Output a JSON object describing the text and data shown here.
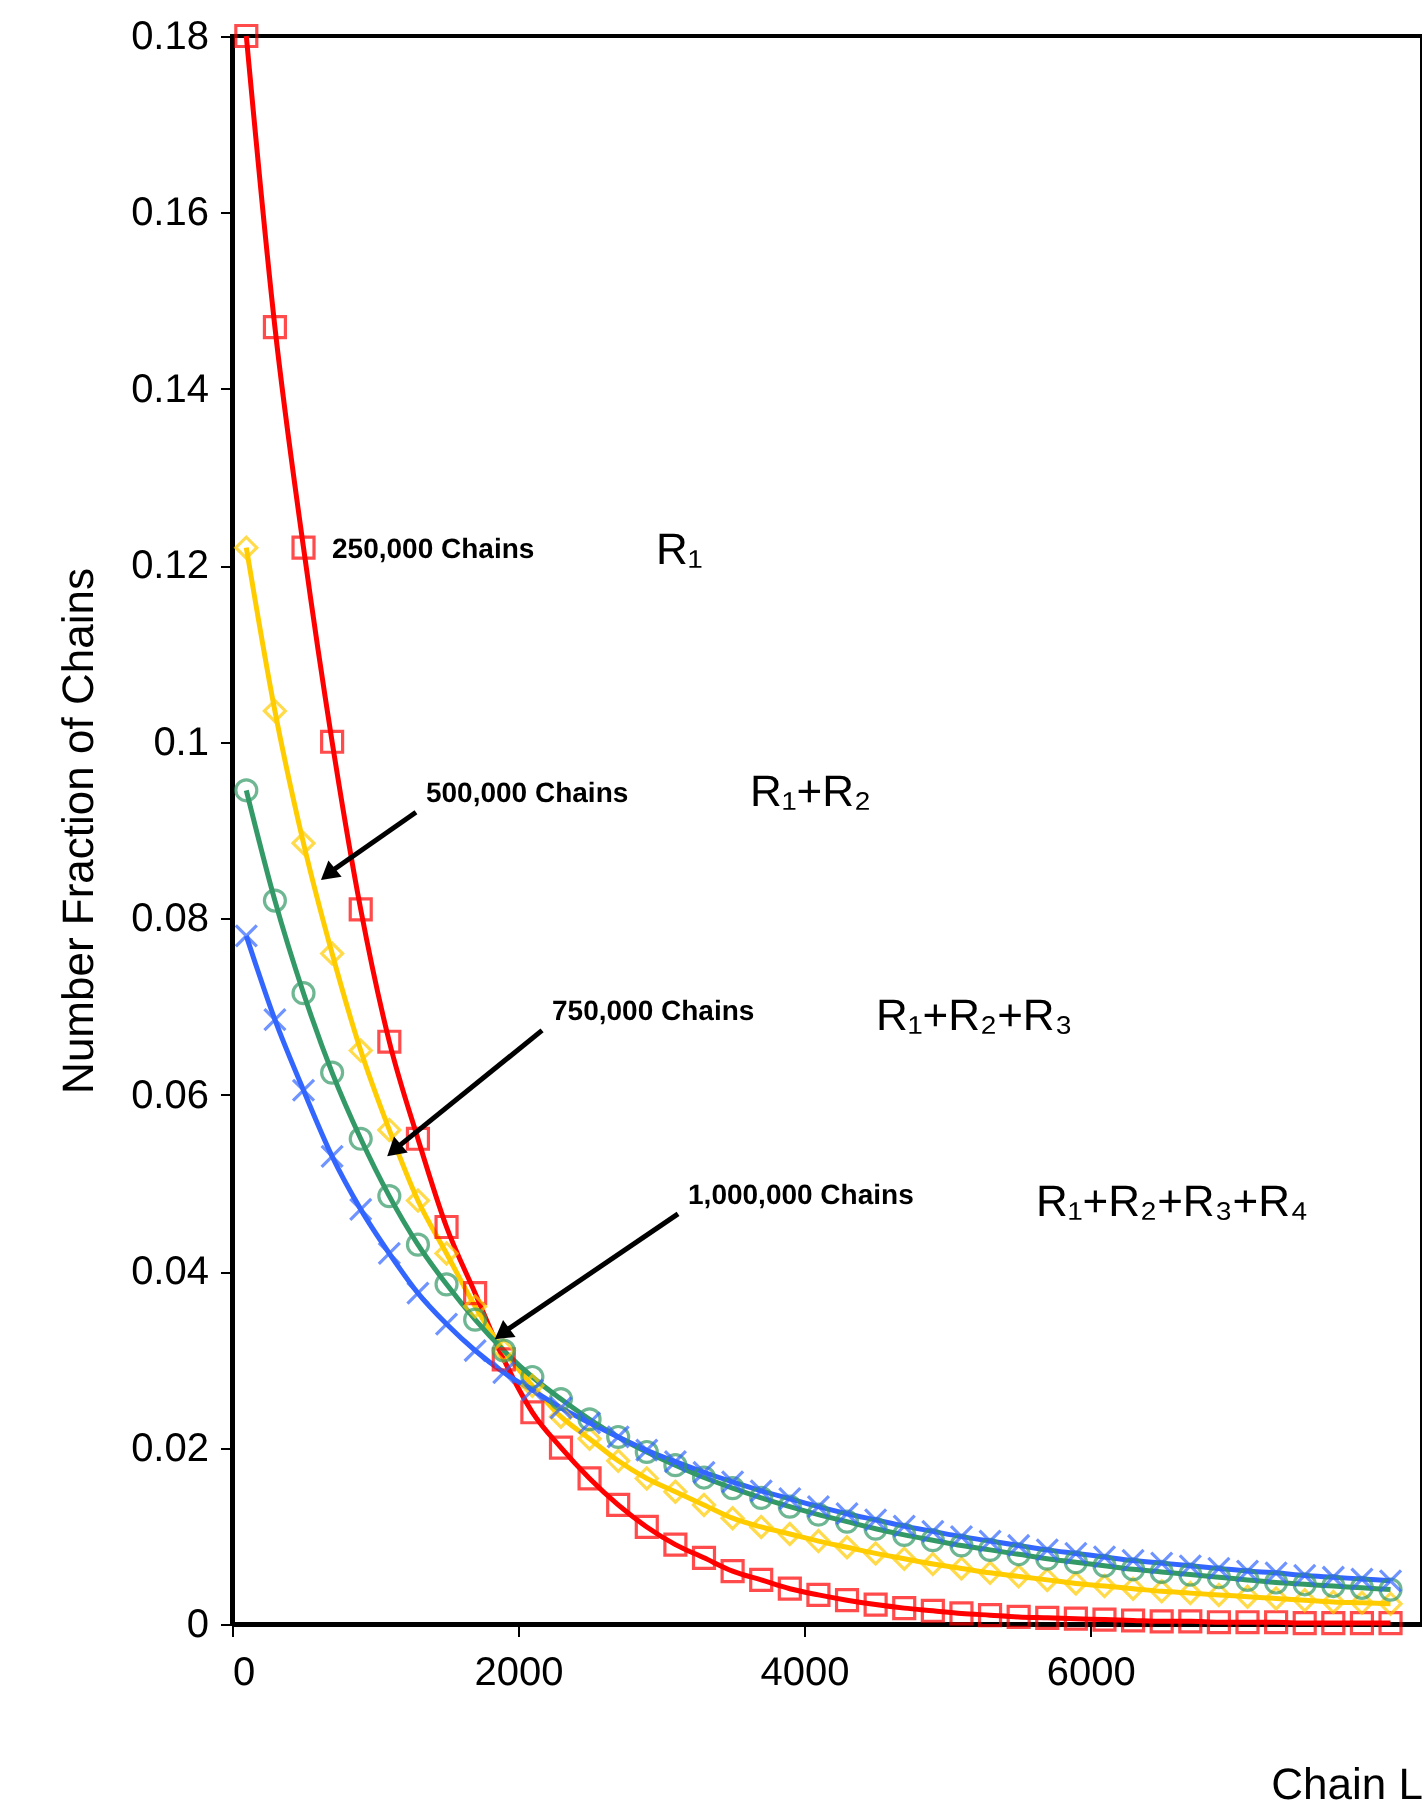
{
  "chart_data": {
    "type": "line",
    "xlabel": "Chain L",
    "ylabel": "Number Fraction of Chains",
    "x": [
      100,
      300,
      500,
      700,
      900,
      1100,
      1300,
      1500,
      1700,
      1900,
      2100,
      2300,
      2500,
      2700,
      2900,
      3100,
      3300,
      3500,
      3700,
      3900,
      4100,
      4300,
      4500,
      4700,
      4900,
      5100,
      5300,
      5500,
      5700,
      5900,
      6100,
      6300,
      6500,
      6700,
      6900,
      7100,
      7300,
      7500,
      7700,
      7900,
      8100
    ],
    "series": [
      {
        "color": "#ff0000",
        "marker": "square",
        "values": [
          0.18,
          0.147,
          0.122,
          0.1,
          0.081,
          0.066,
          0.055,
          0.045,
          0.0375,
          0.03,
          0.024,
          0.02,
          0.0165,
          0.0135,
          0.011,
          0.009,
          0.0075,
          0.006,
          0.005,
          0.004,
          0.0033,
          0.0027,
          0.0022,
          0.0018,
          0.0015,
          0.0012,
          0.001,
          0.0008,
          0.0007,
          0.0006,
          0.0005,
          0.0004,
          0.0003,
          0.0003,
          0.0002,
          0.0002,
          0.0002,
          0.0001,
          0.0001,
          0.0001,
          0.0001
        ]
      },
      {
        "color": "#ffcc00",
        "marker": "diamond",
        "values": [
          0.122,
          0.1035,
          0.0885,
          0.076,
          0.065,
          0.056,
          0.048,
          0.042,
          0.036,
          0.031,
          0.027,
          0.0235,
          0.021,
          0.0185,
          0.0165,
          0.015,
          0.0135,
          0.012,
          0.011,
          0.0102,
          0.0094,
          0.0087,
          0.008,
          0.0074,
          0.0068,
          0.0063,
          0.0058,
          0.0054,
          0.005,
          0.0046,
          0.0043,
          0.004,
          0.0037,
          0.0035,
          0.0033,
          0.0031,
          0.0029,
          0.0027,
          0.0025,
          0.0024,
          0.0023
        ]
      },
      {
        "color": "#339966",
        "marker": "circle",
        "values": [
          0.0945,
          0.082,
          0.0715,
          0.0625,
          0.055,
          0.0485,
          0.043,
          0.0385,
          0.0345,
          0.031,
          0.028,
          0.0255,
          0.0232,
          0.0212,
          0.0195,
          0.018,
          0.0166,
          0.0154,
          0.0143,
          0.0133,
          0.0124,
          0.0116,
          0.0108,
          0.0101,
          0.0095,
          0.0089,
          0.0084,
          0.0079,
          0.0074,
          0.007,
          0.0066,
          0.0062,
          0.0059,
          0.0056,
          0.0053,
          0.005,
          0.0047,
          0.0045,
          0.0043,
          0.0041,
          0.0039
        ]
      },
      {
        "color": "#3366ff",
        "marker": "cross",
        "values": [
          0.078,
          0.0685,
          0.0605,
          0.053,
          0.047,
          0.042,
          0.0375,
          0.034,
          0.031,
          0.0285,
          0.0265,
          0.0245,
          0.0228,
          0.0212,
          0.0197,
          0.0184,
          0.0172,
          0.0161,
          0.0151,
          0.0142,
          0.0133,
          0.0125,
          0.0118,
          0.0111,
          0.0105,
          0.0099,
          0.0094,
          0.0089,
          0.0084,
          0.008,
          0.0076,
          0.0072,
          0.0069,
          0.0066,
          0.0063,
          0.006,
          0.0058,
          0.0055,
          0.0053,
          0.0051,
          0.0049
        ]
      }
    ],
    "annotations": [
      "250,000 Chains",
      "R₁",
      "R₁+R₂",
      "R₁+R₂+R₃",
      "R₁+R₂+R₃+R₄",
      {
        "text": "500,000 Chains",
        "x": 615,
        "y": 0.0843
      },
      {
        "text": "750,000 Chains",
        "x": 1077,
        "y": 0.053
      },
      {
        "text": "1,000,000 Chains",
        "x": 1832,
        "y": 0.0322
      }
    ],
    "xlim": [
      0,
      8320
    ],
    "ylim": [
      0,
      0.18
    ],
    "xticks": [
      0,
      2000,
      4000,
      6000
    ],
    "yticks": [
      0,
      0.02,
      0.04,
      0.06,
      0.08,
      0.1,
      0.12,
      0.14,
      0.16,
      0.18
    ],
    "line_style": "solid"
  }
}
